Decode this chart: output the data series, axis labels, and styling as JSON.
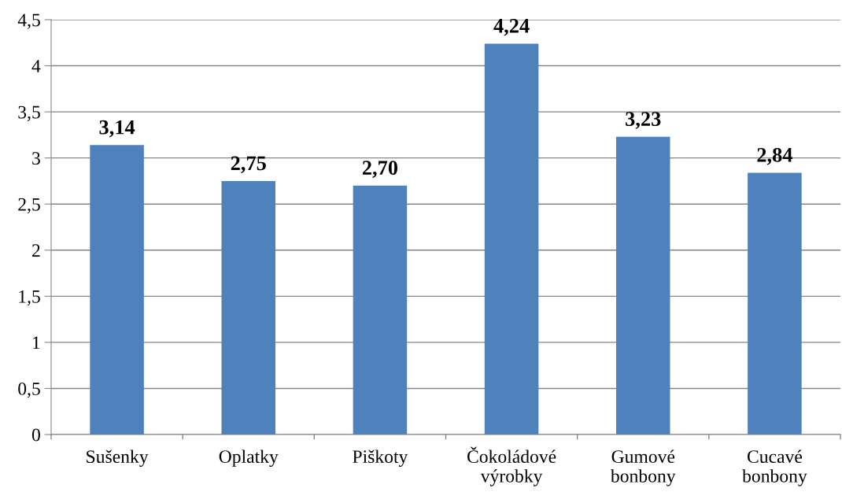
{
  "chart_data": {
    "type": "bar",
    "categories": [
      "Sušenky",
      "Oplatky",
      "Piškoty",
      "Čokoládové výrobky",
      "Gumové bonbony",
      "Cucavé bonbony"
    ],
    "values": [
      3.14,
      2.75,
      2.7,
      4.24,
      3.23,
      2.84
    ],
    "value_labels": [
      "3,14",
      "2,75",
      "2,70",
      "4,24",
      "3,23",
      "2,84"
    ],
    "color": "#4f81bd",
    "ylim": [
      0,
      4.5
    ],
    "yticks": [
      0,
      {
        "value": 0.5,
        "label": "0,5"
      },
      1,
      {
        "value": 1.5,
        "label": "1,5"
      },
      2,
      {
        "value": 2.5,
        "label": "2,5"
      },
      3,
      {
        "value": 3.5,
        "label": "3,5"
      },
      4,
      {
        "value": 4.5,
        "label": "4,5"
      }
    ],
    "grid": "y"
  }
}
